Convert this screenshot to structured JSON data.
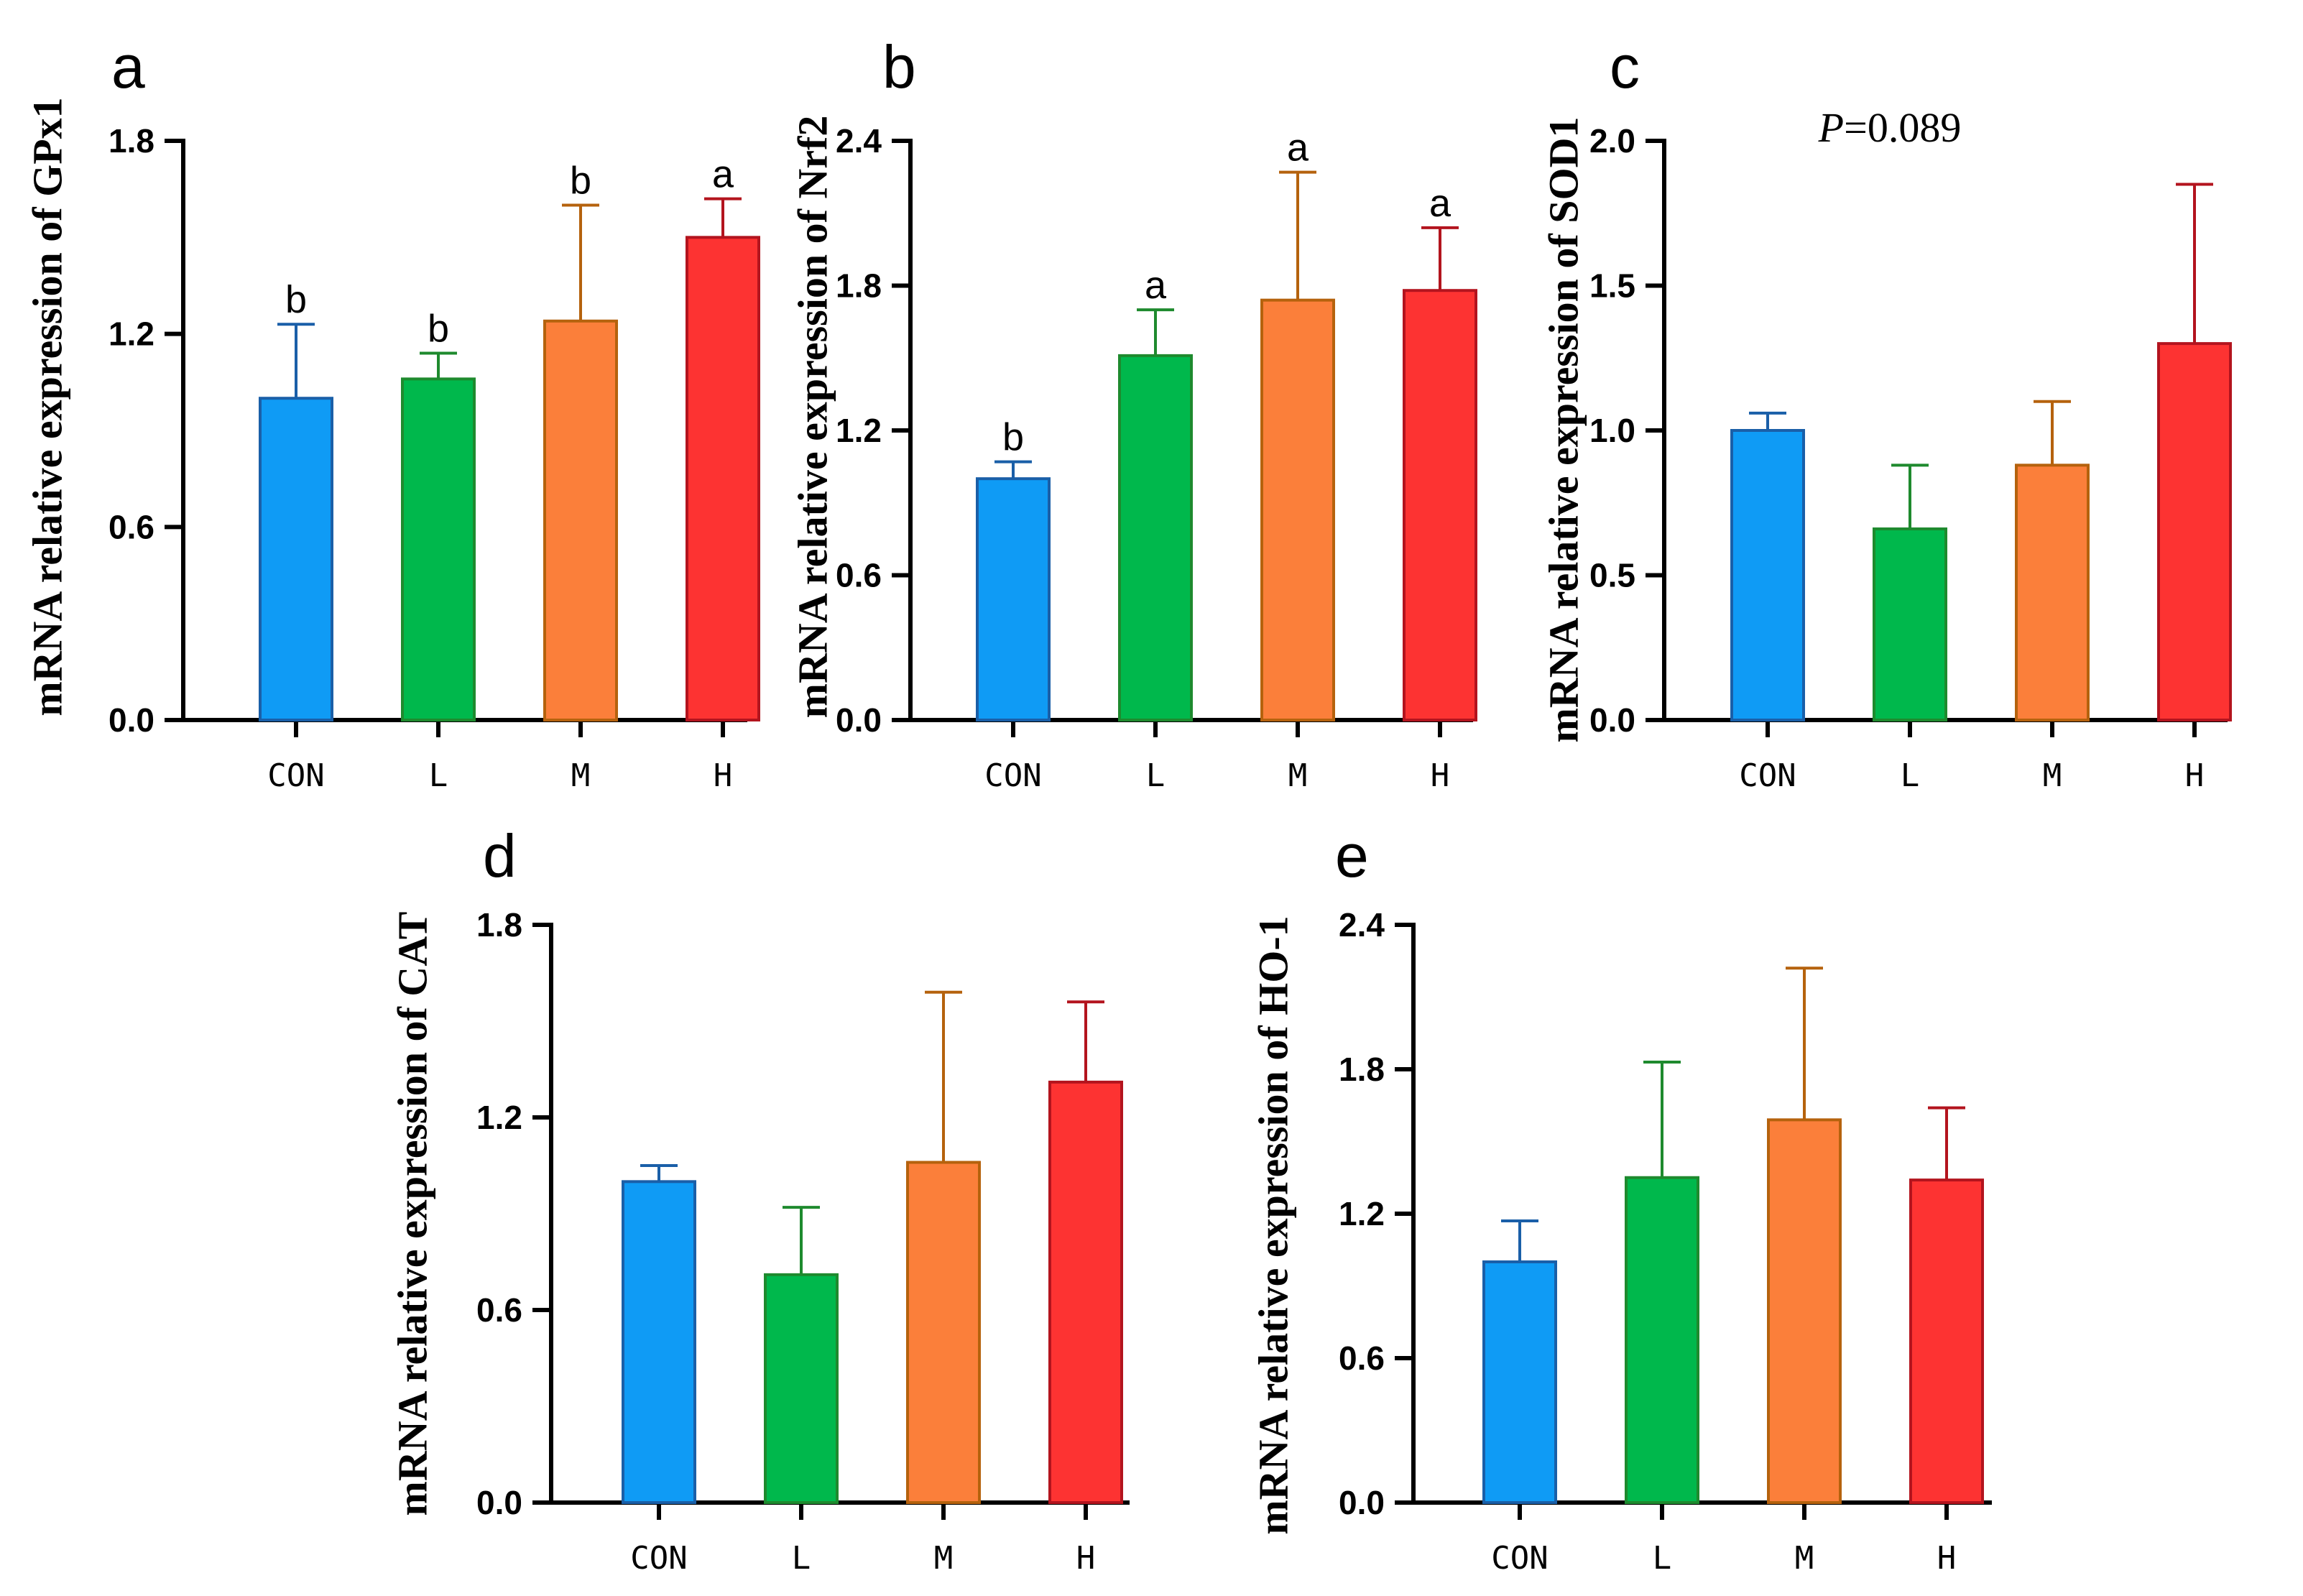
{
  "colors": {
    "CON": {
      "fill": "#0f9bf5",
      "stroke": "#1a5fa8"
    },
    "L": {
      "fill": "#00b84c",
      "stroke": "#1e8a2e"
    },
    "M": {
      "fill": "#fb7f3a",
      "stroke": "#b5620d"
    },
    "H": {
      "fill": "#fd3332",
      "stroke": "#b3141e"
    }
  },
  "chart_data": [
    {
      "type": "bar",
      "panel": "a",
      "ylabel": "mRNA relative expression of GPx1",
      "categories": [
        "CON",
        "L",
        "M",
        "H"
      ],
      "values": [
        1.0,
        1.06,
        1.24,
        1.5
      ],
      "errors": [
        0.23,
        0.08,
        0.36,
        0.12
      ],
      "significance": [
        "b",
        "b",
        "b",
        "a"
      ],
      "ylim": [
        0,
        1.8
      ],
      "yticks": [
        "0.0",
        "0.6",
        "1.2",
        "1.8"
      ],
      "ytick_values": [
        0,
        0.6,
        1.2,
        1.8
      ]
    },
    {
      "type": "bar",
      "panel": "b",
      "ylabel": "mRNA relative expression of Nrf2",
      "categories": [
        "CON",
        "L",
        "M",
        "H"
      ],
      "values": [
        1.0,
        1.51,
        1.74,
        1.78
      ],
      "errors": [
        0.07,
        0.19,
        0.53,
        0.26
      ],
      "significance": [
        "b",
        "a",
        "a",
        "a"
      ],
      "ylim": [
        0,
        2.4
      ],
      "yticks": [
        "0.0",
        "0.6",
        "1.2",
        "1.8",
        "2.4"
      ],
      "ytick_values": [
        0,
        0.6,
        1.2,
        1.8,
        2.4
      ]
    },
    {
      "type": "bar",
      "panel": "c",
      "ylabel": "mRNA relative expression of SOD1",
      "categories": [
        "CON",
        "L",
        "M",
        "H"
      ],
      "values": [
        1.0,
        0.66,
        0.88,
        1.3
      ],
      "errors": [
        0.06,
        0.22,
        0.22,
        0.55
      ],
      "significance": [
        "",
        "",
        "",
        ""
      ],
      "ylim": [
        0,
        2.0
      ],
      "yticks": [
        "0.0",
        "0.5",
        "1.0",
        "1.5",
        "2.0"
      ],
      "ytick_values": [
        0,
        0.5,
        1.0,
        1.5,
        2.0
      ],
      "annotation": {
        "italic": "P",
        "rest": "=0.089"
      }
    },
    {
      "type": "bar",
      "panel": "d",
      "ylabel": "mRNA relative expression of CAT",
      "categories": [
        "CON",
        "L",
        "M",
        "H"
      ],
      "values": [
        1.0,
        0.71,
        1.06,
        1.31
      ],
      "errors": [
        0.05,
        0.21,
        0.53,
        0.25
      ],
      "significance": [
        "",
        "",
        "",
        ""
      ],
      "ylim": [
        0,
        1.8
      ],
      "yticks": [
        "0.0",
        "0.6",
        "1.2",
        "1.8"
      ],
      "ytick_values": [
        0,
        0.6,
        1.2,
        1.8
      ]
    },
    {
      "type": "bar",
      "panel": "e",
      "ylabel": "mRNA relative expression of HO-1",
      "categories": [
        "CON",
        "L",
        "M",
        "H"
      ],
      "values": [
        1.0,
        1.35,
        1.59,
        1.34
      ],
      "errors": [
        0.17,
        0.48,
        0.63,
        0.3
      ],
      "significance": [
        "",
        "",
        "",
        ""
      ],
      "ylim": [
        0,
        2.4
      ],
      "yticks": [
        "0.0",
        "0.6",
        "1.2",
        "1.8",
        "2.4"
      ],
      "ytick_values": [
        0,
        0.6,
        1.2,
        1.8,
        2.4
      ]
    }
  ]
}
